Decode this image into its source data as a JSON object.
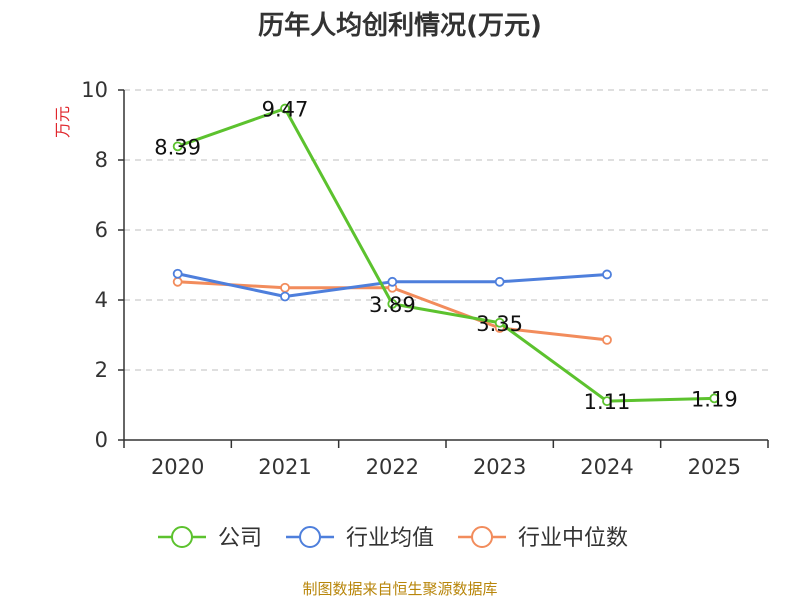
{
  "chart_data": {
    "type": "line",
    "title": "历年人均创利情况(万元)",
    "ylabel": "万元",
    "categories": [
      "2020",
      "2021",
      "2022",
      "2023",
      "2024",
      "2025"
    ],
    "ylim": [
      0,
      10
    ],
    "yticks": [
      0,
      2,
      4,
      6,
      8,
      10
    ],
    "grid": true,
    "legend_position": "bottom",
    "series": [
      {
        "name": "公司",
        "color": "#5cc22e",
        "values": [
          8.39,
          9.47,
          3.89,
          3.35,
          1.11,
          1.19
        ],
        "labels": [
          "8.39",
          "9.47",
          "3.89",
          "3.35",
          "1.11",
          "1.19"
        ]
      },
      {
        "name": "行业均值",
        "color": "#4e7fdc",
        "values": [
          4.75,
          4.1,
          4.52,
          4.52,
          4.73,
          null
        ]
      },
      {
        "name": "行业中位数",
        "color": "#f28c5c",
        "values": [
          4.52,
          4.35,
          4.35,
          3.2,
          2.86,
          null
        ]
      }
    ]
  },
  "source": "制图数据来自恒生聚源数据库",
  "colors": {
    "ylabel": "#e0262c",
    "source": "#b8860b",
    "axis": "#333333",
    "grid": "#cccccc"
  }
}
